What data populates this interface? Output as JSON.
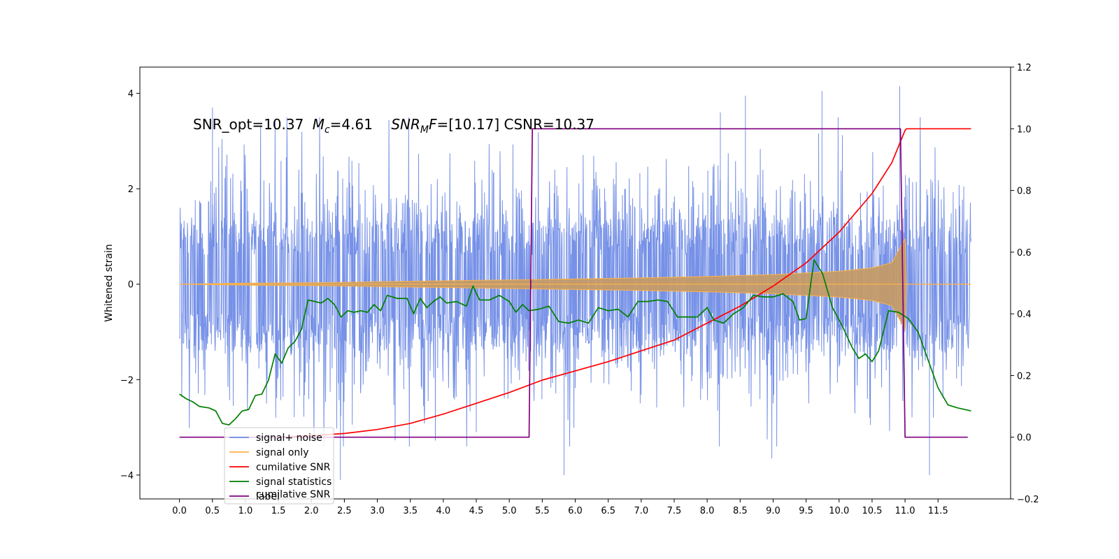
{
  "chart_data": {
    "type": "line",
    "title": "",
    "annotation": {
      "snr_opt": "SNR_opt=10.37",
      "mc_symbol": "M",
      "mc_sub": "c",
      "mc_value": "=4.61",
      "snrmf_symbol": "SNR",
      "snrmf_sub": "M",
      "snrmf_F": "F",
      "snrmf_value": "=[10.17] CSNR=10.37"
    },
    "xlabel": "",
    "ylabel": "Whitened strain",
    "y2label": "",
    "xlim": [
      -0.6,
      12.6
    ],
    "ylim": [
      -4.5,
      4.55
    ],
    "y2lim": [
      -0.2,
      1.2
    ],
    "x_ticks": [
      "0.0",
      "0.5",
      "1.0",
      "1.5",
      "2.0",
      "2.5",
      "3.0",
      "3.5",
      "4.0",
      "4.5",
      "5.0",
      "5.5",
      "6.0",
      "6.5",
      "7.0",
      "7.5",
      "8.0",
      "8.5",
      "9.0",
      "9.5",
      "10.0",
      "10.5",
      "11.0",
      "11.5"
    ],
    "y_ticks": [
      "−4",
      "−2",
      "0",
      "2",
      "4"
    ],
    "y2_ticks": [
      "−0.2",
      "0.0",
      "0.2",
      "0.4",
      "0.6",
      "0.8",
      "1.0",
      "1.2"
    ],
    "legend_position": "lower-left",
    "legend_ghost_text": "cumilative SNR",
    "series": [
      {
        "name": "signal+ noise",
        "color": "#6f8be6",
        "axis": "left",
        "x_range": [
          0.0,
          12.0
        ],
        "approx_range": [
          -3.8,
          4.1
        ],
        "peaks": [
          [
            0.5,
            3.7
          ],
          [
            8.2,
            3.6
          ],
          [
            8.58,
            3.95
          ],
          [
            9.74,
            4.05
          ],
          [
            10.92,
            4.15
          ],
          [
            5.83,
            -4.0
          ],
          [
            11.37,
            -4.0
          ],
          [
            2.44,
            -4.1
          ],
          [
            8.98,
            -3.65
          ],
          [
            4.5,
            -3.1
          ]
        ]
      },
      {
        "name": "signal only",
        "color": "#ffb347",
        "axis": "left",
        "envelope": [
          [
            0.0,
            0.0
          ],
          [
            1.0,
            0.02
          ],
          [
            2.0,
            0.03
          ],
          [
            3.0,
            0.05
          ],
          [
            4.0,
            0.07
          ],
          [
            5.0,
            0.09
          ],
          [
            6.0,
            0.11
          ],
          [
            7.0,
            0.13
          ],
          [
            8.0,
            0.16
          ],
          [
            9.0,
            0.2
          ],
          [
            10.0,
            0.27
          ],
          [
            10.5,
            0.34
          ],
          [
            10.8,
            0.45
          ],
          [
            10.92,
            0.75
          ],
          [
            11.0,
            0.95
          ],
          [
            11.02,
            0.0
          ],
          [
            12.0,
            0.0
          ]
        ]
      },
      {
        "name": "cumilative SNR",
        "color": "#ff0000",
        "axis": "right",
        "points": [
          [
            1.45,
            0.0
          ],
          [
            2.0,
            0.005
          ],
          [
            2.5,
            0.012
          ],
          [
            3.0,
            0.025
          ],
          [
            3.5,
            0.045
          ],
          [
            4.0,
            0.075
          ],
          [
            4.5,
            0.11
          ],
          [
            5.0,
            0.145
          ],
          [
            5.5,
            0.185
          ],
          [
            6.0,
            0.215
          ],
          [
            6.5,
            0.245
          ],
          [
            7.0,
            0.28
          ],
          [
            7.5,
            0.315
          ],
          [
            8.0,
            0.37
          ],
          [
            8.5,
            0.425
          ],
          [
            9.0,
            0.49
          ],
          [
            9.5,
            0.565
          ],
          [
            10.0,
            0.665
          ],
          [
            10.5,
            0.79
          ],
          [
            10.8,
            0.89
          ],
          [
            11.0,
            0.995
          ],
          [
            11.02,
            1.0
          ],
          [
            12.0,
            1.0
          ]
        ]
      },
      {
        "name": "signal statistics",
        "color": "#008000",
        "axis": "right",
        "points": [
          [
            0.0,
            0.14
          ],
          [
            0.1,
            0.125
          ],
          [
            0.2,
            0.115
          ],
          [
            0.3,
            0.1
          ],
          [
            0.45,
            0.095
          ],
          [
            0.55,
            0.085
          ],
          [
            0.65,
            0.045
          ],
          [
            0.75,
            0.04
          ],
          [
            0.85,
            0.06
          ],
          [
            0.95,
            0.085
          ],
          [
            1.05,
            0.09
          ],
          [
            1.15,
            0.135
          ],
          [
            1.25,
            0.14
          ],
          [
            1.35,
            0.185
          ],
          [
            1.45,
            0.27
          ],
          [
            1.55,
            0.24
          ],
          [
            1.65,
            0.29
          ],
          [
            1.75,
            0.31
          ],
          [
            1.85,
            0.35
          ],
          [
            1.95,
            0.445
          ],
          [
            2.05,
            0.44
          ],
          [
            2.15,
            0.435
          ],
          [
            2.25,
            0.45
          ],
          [
            2.35,
            0.43
          ],
          [
            2.45,
            0.39
          ],
          [
            2.55,
            0.41
          ],
          [
            2.65,
            0.405
          ],
          [
            2.75,
            0.41
          ],
          [
            2.85,
            0.405
          ],
          [
            2.95,
            0.43
          ],
          [
            3.05,
            0.41
          ],
          [
            3.15,
            0.46
          ],
          [
            3.3,
            0.45
          ],
          [
            3.45,
            0.45
          ],
          [
            3.55,
            0.4
          ],
          [
            3.65,
            0.45
          ],
          [
            3.75,
            0.42
          ],
          [
            3.85,
            0.44
          ],
          [
            3.95,
            0.455
          ],
          [
            4.05,
            0.435
          ],
          [
            4.2,
            0.44
          ],
          [
            4.35,
            0.425
          ],
          [
            4.45,
            0.49
          ],
          [
            4.55,
            0.445
          ],
          [
            4.7,
            0.445
          ],
          [
            4.85,
            0.46
          ],
          [
            5.0,
            0.44
          ],
          [
            5.1,
            0.405
          ],
          [
            5.2,
            0.43
          ],
          [
            5.3,
            0.41
          ],
          [
            5.45,
            0.415
          ],
          [
            5.6,
            0.425
          ],
          [
            5.75,
            0.375
          ],
          [
            5.9,
            0.37
          ],
          [
            6.05,
            0.38
          ],
          [
            6.2,
            0.37
          ],
          [
            6.35,
            0.42
          ],
          [
            6.5,
            0.41
          ],
          [
            6.65,
            0.415
          ],
          [
            6.8,
            0.39
          ],
          [
            6.95,
            0.44
          ],
          [
            7.1,
            0.44
          ],
          [
            7.25,
            0.445
          ],
          [
            7.4,
            0.44
          ],
          [
            7.55,
            0.39
          ],
          [
            7.7,
            0.39
          ],
          [
            7.85,
            0.39
          ],
          [
            8.0,
            0.42
          ],
          [
            8.1,
            0.38
          ],
          [
            8.25,
            0.37
          ],
          [
            8.4,
            0.4
          ],
          [
            8.55,
            0.42
          ],
          [
            8.7,
            0.46
          ],
          [
            8.85,
            0.455
          ],
          [
            9.0,
            0.455
          ],
          [
            9.15,
            0.465
          ],
          [
            9.3,
            0.44
          ],
          [
            9.4,
            0.38
          ],
          [
            9.5,
            0.385
          ],
          [
            9.62,
            0.575
          ],
          [
            9.75,
            0.53
          ],
          [
            9.9,
            0.42
          ],
          [
            10.05,
            0.36
          ],
          [
            10.2,
            0.29
          ],
          [
            10.3,
            0.255
          ],
          [
            10.4,
            0.27
          ],
          [
            10.5,
            0.245
          ],
          [
            10.6,
            0.28
          ],
          [
            10.75,
            0.41
          ],
          [
            10.9,
            0.405
          ],
          [
            11.05,
            0.385
          ],
          [
            11.2,
            0.34
          ],
          [
            11.35,
            0.25
          ],
          [
            11.5,
            0.16
          ],
          [
            11.65,
            0.105
          ],
          [
            11.8,
            0.095
          ],
          [
            11.95,
            0.088
          ],
          [
            12.0,
            0.085
          ]
        ]
      },
      {
        "name": "label",
        "color": "#800080",
        "axis": "right",
        "points": [
          [
            0.0,
            0.0
          ],
          [
            5.3,
            0.0
          ],
          [
            5.35,
            1.0
          ],
          [
            10.93,
            1.0
          ],
          [
            11.0,
            0.0
          ],
          [
            11.95,
            0.0
          ]
        ]
      }
    ]
  }
}
